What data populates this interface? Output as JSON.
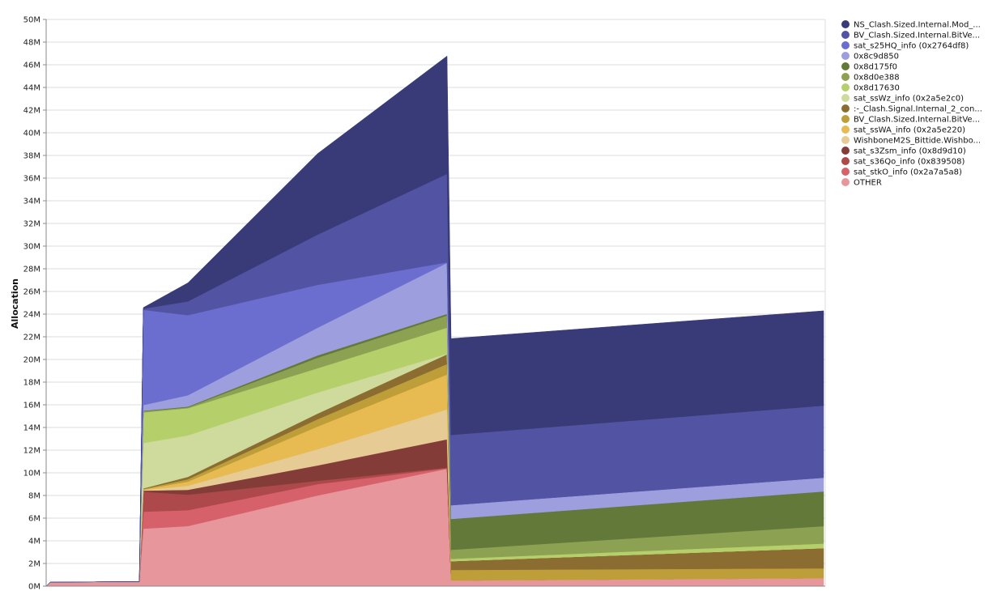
{
  "chart_data": {
    "type": "area",
    "stacked": true,
    "title": "",
    "xlabel": "",
    "ylabel": "Allocation",
    "ylim": [
      0,
      50
    ],
    "y_unit_suffix": "M",
    "y_ticks": [
      "0M",
      "2M",
      "4M",
      "6M",
      "8M",
      "10M",
      "12M",
      "14M",
      "16M",
      "18M",
      "20M",
      "22M",
      "24M",
      "26M",
      "28M",
      "30M",
      "32M",
      "34M",
      "36M",
      "38M",
      "40M",
      "42M",
      "44M",
      "46M",
      "48M",
      "50M"
    ],
    "grid": true,
    "legend_position": "right",
    "x": [
      0,
      1,
      23,
      24,
      35,
      67,
      99,
      100,
      192
    ],
    "series": [
      {
        "name": "OTHER",
        "color": "#e7969c",
        "values": [
          0,
          0.35,
          0.4,
          5.07,
          5.3,
          8.0,
          10.36,
          0.5,
          0.71
        ]
      },
      {
        "name": "sat_stkO_info (0x2a7a5a8)",
        "color": "#d6616b",
        "values": [
          0,
          0,
          0,
          1.5,
          1.4,
          1.0,
          0.05,
          0,
          0
        ]
      },
      {
        "name": "sat_s36Qo_info (0x839508)",
        "color": "#ad494a",
        "values": [
          0,
          0,
          0,
          1.76,
          1.37,
          0.29,
          0.05,
          0,
          0
        ]
      },
      {
        "name": "sat_s3Zsm_info (0x8d9d10)",
        "color": "#843c39",
        "values": [
          0,
          0,
          0,
          0.1,
          0.43,
          1.36,
          2.5,
          0,
          0
        ]
      },
      {
        "name": "WishboneM2S_Bittide.Wishbo...",
        "color": "#e7cb94",
        "values": [
          0,
          0,
          0,
          0.05,
          0.36,
          1.43,
          2.64,
          0,
          0
        ]
      },
      {
        "name": "sat_ssWA_info (0x2a5e220)",
        "color": "#e7ba52",
        "values": [
          0,
          0,
          0,
          0.05,
          0.36,
          2.0,
          3.07,
          0,
          0
        ]
      },
      {
        "name": "BV_Clash.Sized.Internal.BitVe...",
        "color": "#bd9e39",
        "values": [
          0,
          0,
          0,
          0.05,
          0.21,
          0.64,
          0.93,
          0.93,
          0.86
        ]
      },
      {
        "name": ":-_Clash.Signal.Internal_2_con...",
        "color": "#8c6d31",
        "values": [
          0,
          0,
          0,
          0.05,
          0.21,
          0.5,
          0.86,
          0.78,
          1.79
        ]
      },
      {
        "name": "sat_ssWz_info (0x2a5e2c0)",
        "color": "#cedb9c",
        "values": [
          0,
          0,
          0,
          4.0,
          3.66,
          1.86,
          0.05,
          0,
          0
        ]
      },
      {
        "name": "0x8d17630",
        "color": "#b5cf6b",
        "values": [
          0,
          0,
          0,
          2.7,
          2.4,
          2.14,
          2.3,
          0.2,
          0.4
        ]
      },
      {
        "name": "0x8d0e388",
        "color": "#8ca252",
        "values": [
          0,
          0,
          0,
          0.1,
          0.07,
          0.93,
          1.07,
          0.8,
          1.53
        ]
      },
      {
        "name": "0x8d175f0",
        "color": "#637939",
        "values": [
          0,
          0,
          0,
          0.05,
          0.07,
          0.21,
          0.14,
          2.72,
          3.07
        ]
      },
      {
        "name": "0x8c9d850",
        "color": "#9c9ede",
        "values": [
          0,
          0,
          0,
          0.5,
          1.0,
          2.43,
          4.5,
          1.21,
          1.21
        ]
      },
      {
        "name": "sat_s25HQ_info (0x2764df8)",
        "color": "#6b6ecf",
        "values": [
          0,
          0,
          0,
          8.4,
          7.07,
          3.79,
          0.05,
          0,
          0
        ]
      },
      {
        "name": "BV_Clash.Sized.Internal.BitVe...",
        "color": "#5254a3",
        "values": [
          0,
          0,
          0,
          0.1,
          1.21,
          4.43,
          7.8,
          6.2,
          6.36
        ]
      },
      {
        "name": "NS_Clash.Sized.Internal.Mod_...",
        "color": "#393b79",
        "values": [
          0,
          0,
          0,
          0.1,
          1.64,
          7.14,
          10.4,
          8.5,
          8.36
        ]
      }
    ]
  }
}
